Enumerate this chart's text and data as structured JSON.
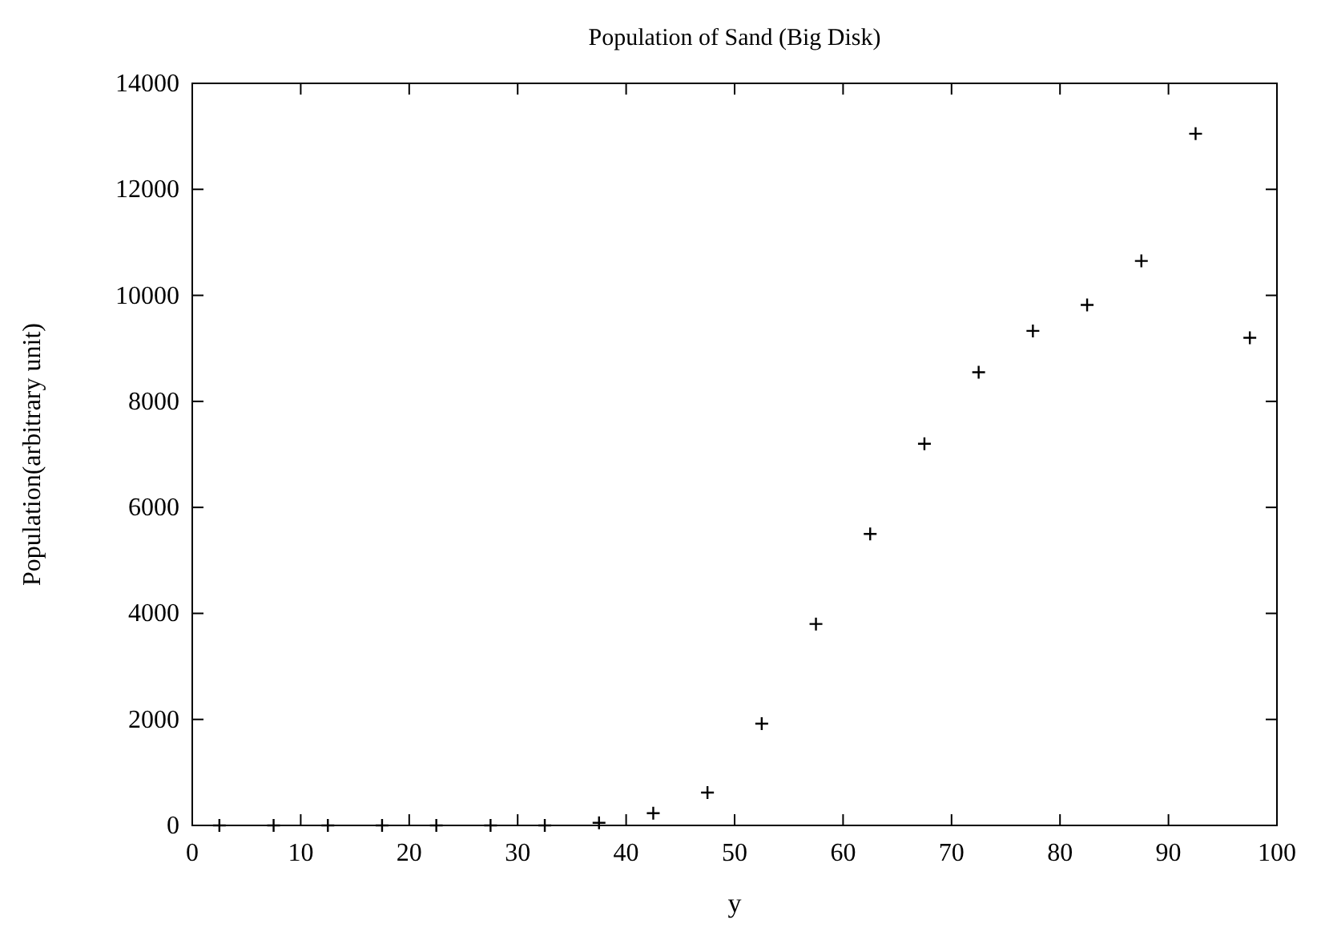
{
  "chart_data": {
    "type": "scatter",
    "title": "Population of Sand (Big Disk)",
    "xlabel": "y",
    "ylabel": "Population(arbitrary unit)",
    "marker": "cross",
    "grid": false,
    "x": [
      2.5,
      7.5,
      12.5,
      17.5,
      22.5,
      27.5,
      32.5,
      37.5,
      42.5,
      47.5,
      52.5,
      57.5,
      62.5,
      67.5,
      72.5,
      77.5,
      82.5,
      87.5,
      92.5,
      97.5
    ],
    "series": [
      {
        "color": "#000000",
        "values": [
          0,
          0,
          0,
          0,
          0,
          0,
          0,
          50,
          230,
          620,
          1920,
          3800,
          5500,
          7200,
          8550,
          9330,
          9820,
          10650,
          13050,
          9200
        ]
      }
    ],
    "xlim": [
      0,
      100
    ],
    "xticks": [
      0,
      10,
      20,
      30,
      40,
      50,
      60,
      70,
      80,
      90,
      100
    ],
    "ylim": [
      0,
      14000
    ],
    "yticks": [
      0,
      2000,
      4000,
      6000,
      8000,
      10000,
      12000,
      14000
    ]
  }
}
